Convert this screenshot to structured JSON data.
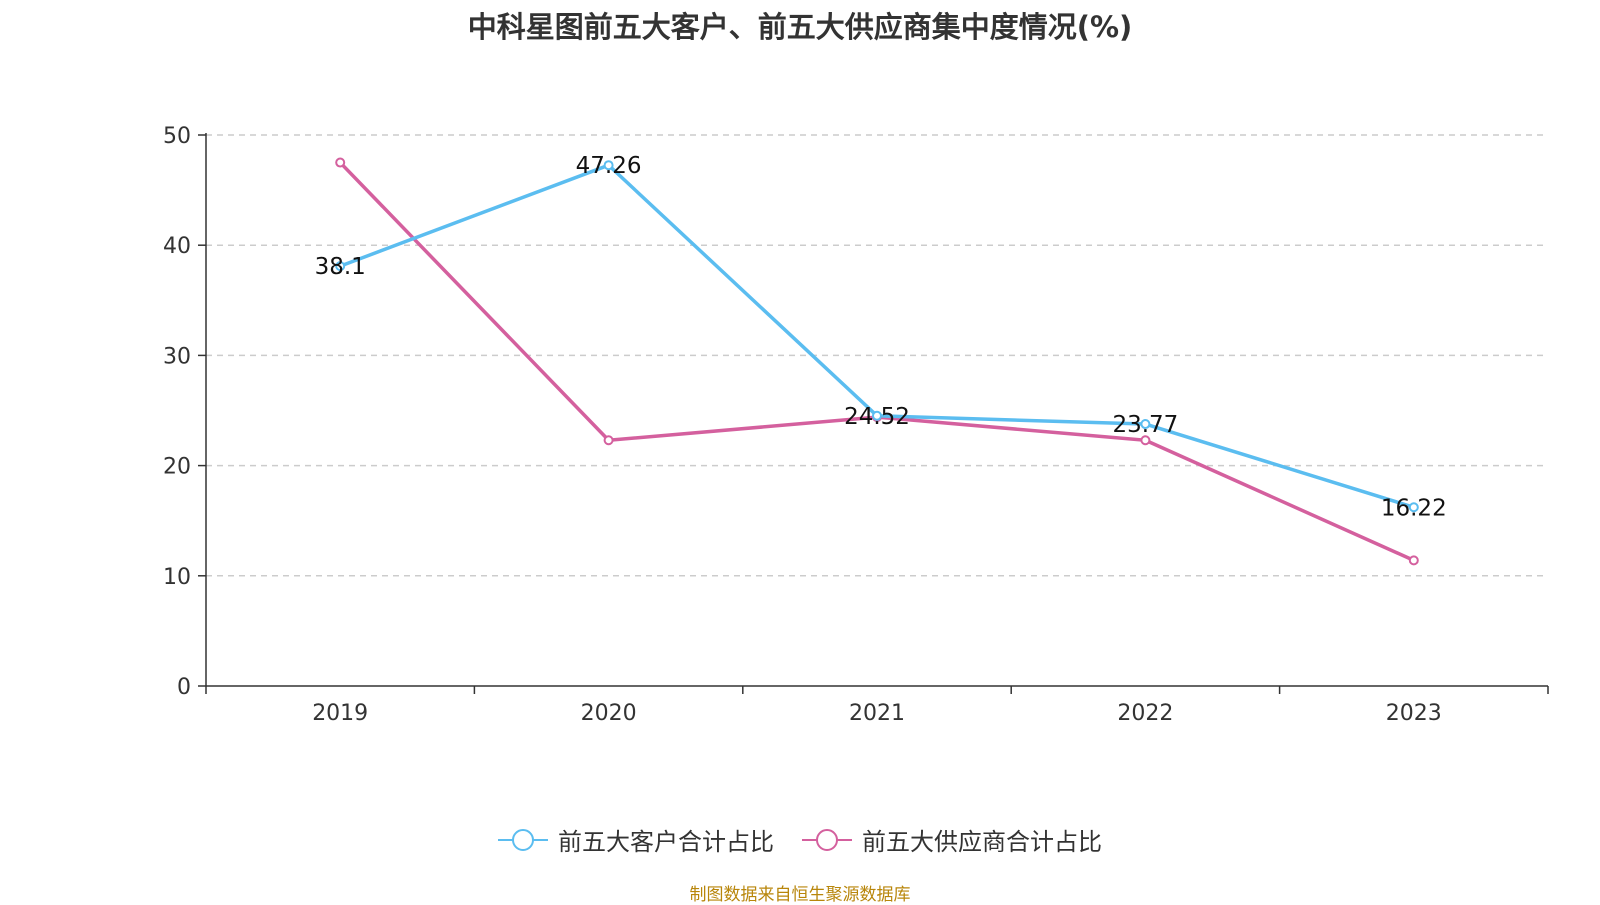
{
  "title": "中科星图前五大客户、前五大供应商集中度情况(%)",
  "source": "制图数据来自恒生聚源数据库",
  "chart_data": {
    "type": "line",
    "categories": [
      "2019",
      "2020",
      "2021",
      "2022",
      "2023"
    ],
    "ylim": [
      0,
      50
    ],
    "yticks": [
      "0",
      "10",
      "20",
      "30",
      "40",
      "50"
    ],
    "grid": true,
    "legend_position": "bottom",
    "series": [
      {
        "name": "前五大客户合计占比",
        "values": [
          38.1,
          47.26,
          24.52,
          23.77,
          16.22
        ],
        "labels": [
          "38.1",
          "47.26",
          "24.52",
          "23.77",
          "16.22"
        ],
        "color": "#5bbdf0"
      },
      {
        "name": "前五大供应商合计占比",
        "values": [
          47.5,
          22.3,
          24.4,
          22.3,
          11.4
        ],
        "labels": null,
        "color": "#d4609e"
      }
    ]
  }
}
